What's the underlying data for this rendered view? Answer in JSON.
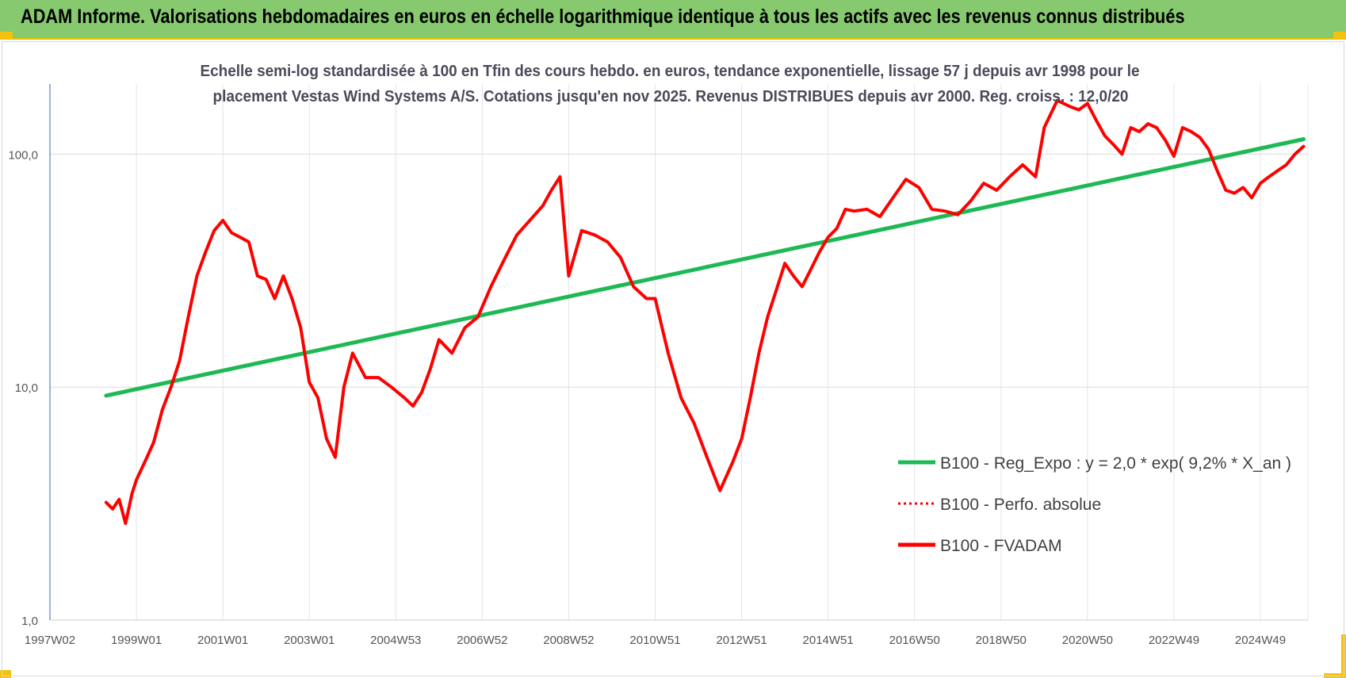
{
  "banner": {
    "title": "ADAM Informe. Valorisations hebdomadaires en euros en échelle logarithmique identique à tous les actifs avec les revenus connus distribués"
  },
  "chart_data": {
    "type": "line",
    "title_line1": "Echelle semi-log standardisée à 100 en Tfin des cours hebdo. en euros, tendance exponentielle, lissage 57 j depuis avr 1998 pour le",
    "title_line2": "placement Vestas Wind Systems A/S. Cotations jusqu'en nov 2025. Revenus DISTRIBUES depuis avr 2000. Reg. croiss. : 12,0/20",
    "y_scale": "log",
    "ylim": [
      1,
      200
    ],
    "xlim": [
      1997.0,
      2026.1
    ],
    "y_ticks": [
      {
        "value": 1,
        "label": "1,0"
      },
      {
        "value": 10,
        "label": "10,0"
      },
      {
        "value": 100,
        "label": "100,0"
      }
    ],
    "x_ticks": [
      {
        "value": 1997.0,
        "label": "1997W02"
      },
      {
        "value": 1999.0,
        "label": "1999W01"
      },
      {
        "value": 2001.0,
        "label": "2001W01"
      },
      {
        "value": 2003.0,
        "label": "2003W01"
      },
      {
        "value": 2005.0,
        "label": "2004W53"
      },
      {
        "value": 2007.0,
        "label": "2006W52"
      },
      {
        "value": 2009.0,
        "label": "2008W52"
      },
      {
        "value": 2011.0,
        "label": "2010W51"
      },
      {
        "value": 2013.0,
        "label": "2012W51"
      },
      {
        "value": 2015.0,
        "label": "2014W51"
      },
      {
        "value": 2017.0,
        "label": "2016W50"
      },
      {
        "value": 2019.0,
        "label": "2018W50"
      },
      {
        "value": 2021.0,
        "label": "2020W50"
      },
      {
        "value": 2023.0,
        "label": "2022W49"
      },
      {
        "value": 2025.0,
        "label": "2024W49"
      }
    ],
    "grid": true,
    "legend_position": "bottom-right",
    "series": [
      {
        "name": "B100 - Reg_Expo : y = 2,0 * exp( 9,2% *  X_an )",
        "color": "#1db954",
        "style": "solid",
        "x": [
          1998.3,
          2026.0
        ],
        "y": [
          9.2,
          116.0
        ]
      },
      {
        "name": "B100 - Perfo. absolue",
        "color": "#ff0000",
        "style": "dotted",
        "x": [],
        "y": []
      },
      {
        "name": "B100 - FVADAM",
        "color": "#ff0000",
        "style": "solid",
        "x": [
          1998.3,
          1998.45,
          1998.6,
          1998.75,
          1998.9,
          1999.0,
          1999.2,
          1999.4,
          1999.6,
          1999.8,
          2000.0,
          2000.2,
          2000.4,
          2000.6,
          2000.8,
          2001.0,
          2001.2,
          2001.4,
          2001.6,
          2001.8,
          2002.0,
          2002.2,
          2002.4,
          2002.6,
          2002.8,
          2003.0,
          2003.2,
          2003.4,
          2003.6,
          2003.8,
          2004.0,
          2004.3,
          2004.6,
          2004.9,
          2005.2,
          2005.4,
          2005.6,
          2005.8,
          2006.0,
          2006.3,
          2006.6,
          2006.9,
          2007.2,
          2007.5,
          2007.8,
          2008.1,
          2008.4,
          2008.6,
          2008.8,
          2009.0,
          2009.3,
          2009.6,
          2009.9,
          2010.2,
          2010.5,
          2010.8,
          2011.0,
          2011.3,
          2011.6,
          2011.9,
          2012.2,
          2012.5,
          2012.8,
          2013.0,
          2013.2,
          2013.4,
          2013.6,
          2013.8,
          2014.0,
          2014.2,
          2014.4,
          2014.6,
          2014.8,
          2015.0,
          2015.2,
          2015.4,
          2015.6,
          2015.9,
          2016.2,
          2016.5,
          2016.8,
          2017.1,
          2017.4,
          2017.7,
          2018.0,
          2018.3,
          2018.6,
          2018.9,
          2019.2,
          2019.5,
          2019.8,
          2020.0,
          2020.3,
          2020.6,
          2020.8,
          2021.0,
          2021.2,
          2021.4,
          2021.6,
          2021.8,
          2022.0,
          2022.2,
          2022.4,
          2022.6,
          2022.8,
          2023.0,
          2023.2,
          2023.4,
          2023.6,
          2023.8,
          2024.0,
          2024.2,
          2024.4,
          2024.6,
          2024.8,
          2025.0,
          2025.2,
          2025.4,
          2025.6,
          2025.8,
          2026.0
        ],
        "y": [
          3.2,
          3.0,
          3.3,
          2.6,
          3.5,
          4.0,
          4.8,
          5.8,
          8.0,
          10.0,
          13.0,
          20.0,
          30.0,
          38.0,
          47.0,
          52.0,
          46.0,
          44.0,
          42.0,
          30.0,
          29.0,
          24.0,
          30.0,
          24.0,
          18.0,
          10.5,
          9.0,
          6.0,
          5.0,
          10.0,
          14.0,
          11.0,
          11.0,
          10.0,
          9.0,
          8.3,
          9.5,
          12.0,
          16.0,
          14.0,
          18.0,
          20.0,
          27.0,
          35.0,
          45.0,
          52.0,
          60.0,
          70.0,
          80.0,
          30.0,
          47.0,
          45.0,
          42.0,
          36.0,
          27.0,
          24.0,
          24.0,
          14.0,
          9.0,
          7.0,
          5.0,
          3.6,
          4.8,
          6.0,
          9.0,
          14.0,
          20.0,
          26.0,
          34.0,
          30.0,
          27.0,
          32.0,
          38.0,
          44.0,
          48.0,
          58.0,
          57.0,
          58.0,
          54.0,
          65.0,
          78.0,
          72.0,
          58.0,
          57.0,
          55.0,
          63.0,
          75.0,
          70.0,
          80.0,
          90.0,
          80.0,
          130.0,
          170.0,
          160.0,
          155.0,
          165.0,
          140.0,
          120.0,
          110.0,
          100.0,
          130.0,
          125.0,
          135.0,
          130.0,
          115.0,
          98.0,
          130.0,
          125.0,
          118.0,
          105.0,
          85.0,
          70.0,
          68.0,
          72.0,
          65.0,
          75.0,
          80.0,
          85.0,
          90.0,
          100.0,
          108.0
        ]
      }
    ]
  }
}
